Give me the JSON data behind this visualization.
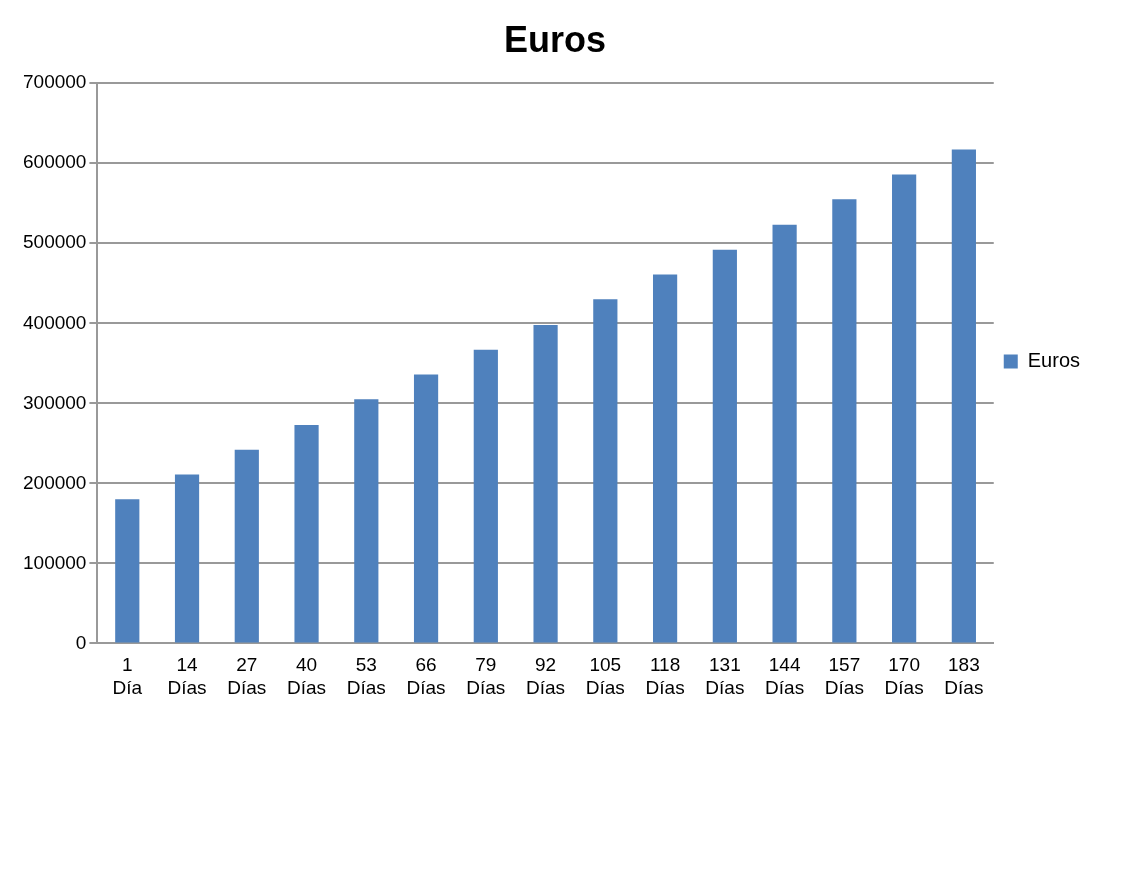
{
  "chart_data": {
    "type": "bar",
    "title": "Euros",
    "categories": [
      "1 Día",
      "14 Días",
      "27 Días",
      "40 Días",
      "53 Días",
      "66 Días",
      "79 Días",
      "92 Días",
      "105 Días",
      "118 Días",
      "131 Días",
      "144 Días",
      "157 Días",
      "170 Días",
      "183 Días"
    ],
    "series": [
      {
        "name": "Euros",
        "color": "#4f81bd",
        "values": [
          180000,
          211000,
          242000,
          273000,
          305000,
          336000,
          367000,
          398000,
          430000,
          461000,
          492000,
          523000,
          555000,
          586000,
          617000
        ]
      }
    ],
    "ylim": [
      0,
      700000
    ],
    "yticks": [
      0,
      100000,
      200000,
      300000,
      400000,
      500000,
      600000,
      700000
    ],
    "grid": "y",
    "legend": "right"
  }
}
